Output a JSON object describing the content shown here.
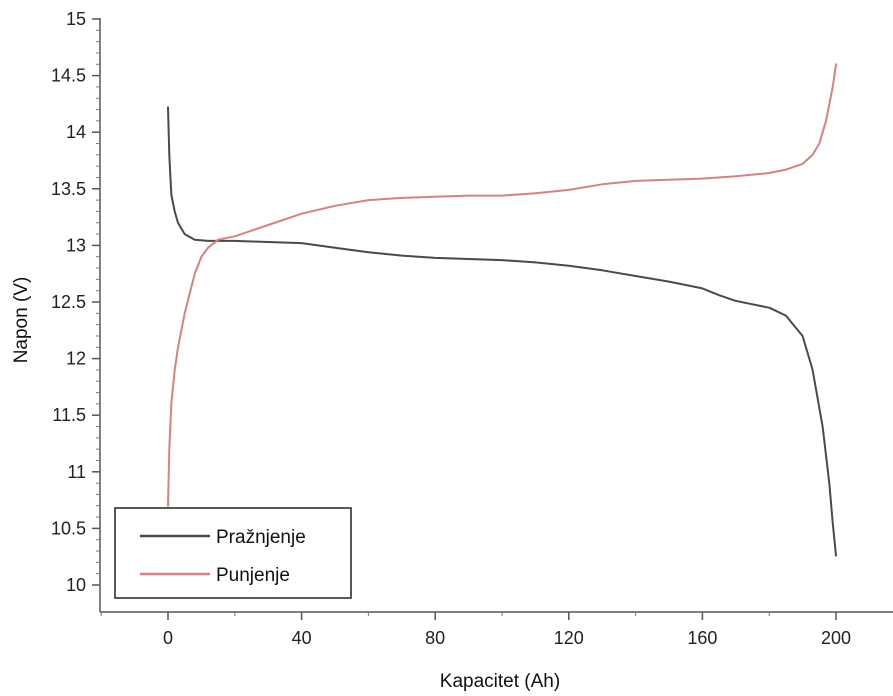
{
  "chart_data": {
    "type": "line",
    "title": "",
    "xlabel": "Kapacitet (Ah)",
    "ylabel": "Napon (V)",
    "xlim": [
      -20,
      210
    ],
    "ylim": [
      9.8,
      15
    ],
    "xticks": [
      0,
      40,
      80,
      120,
      160,
      200
    ],
    "yticks": [
      10,
      10.5,
      11,
      11.5,
      12,
      12.5,
      13,
      13.5,
      14,
      14.5,
      15
    ],
    "grid": false,
    "legend_position": "bottom-left",
    "series": [
      {
        "name": "Pražnjenje",
        "color": "#4a4a4a",
        "x": [
          0,
          0.4,
          1,
          2,
          3,
          5,
          8,
          12,
          20,
          30,
          40,
          50,
          60,
          70,
          80,
          90,
          100,
          110,
          120,
          130,
          140,
          150,
          160,
          165,
          170,
          175,
          180,
          185,
          190,
          193,
          196,
          198,
          199,
          200
        ],
        "y": [
          14.22,
          13.8,
          13.45,
          13.3,
          13.2,
          13.1,
          13.05,
          13.04,
          13.04,
          13.03,
          13.02,
          12.98,
          12.94,
          12.91,
          12.89,
          12.88,
          12.87,
          12.85,
          12.82,
          12.78,
          12.73,
          12.68,
          12.62,
          12.56,
          12.51,
          12.48,
          12.45,
          12.38,
          12.2,
          11.9,
          11.4,
          10.9,
          10.55,
          10.26
        ]
      },
      {
        "name": "Punjenje",
        "color": "#d98080",
        "x": [
          0,
          0.4,
          1,
          2,
          3,
          5,
          8,
          10,
          12,
          15,
          20,
          25,
          30,
          40,
          50,
          60,
          70,
          80,
          90,
          100,
          110,
          120,
          130,
          140,
          150,
          160,
          170,
          180,
          185,
          190,
          193,
          195,
          197,
          199,
          200
        ],
        "y": [
          10.7,
          11.2,
          11.6,
          11.9,
          12.1,
          12.4,
          12.75,
          12.9,
          12.98,
          13.05,
          13.08,
          13.13,
          13.18,
          13.28,
          13.35,
          13.4,
          13.42,
          13.43,
          13.44,
          13.44,
          13.46,
          13.49,
          13.54,
          13.57,
          13.58,
          13.59,
          13.61,
          13.64,
          13.67,
          13.72,
          13.8,
          13.9,
          14.1,
          14.4,
          14.6
        ]
      }
    ]
  }
}
